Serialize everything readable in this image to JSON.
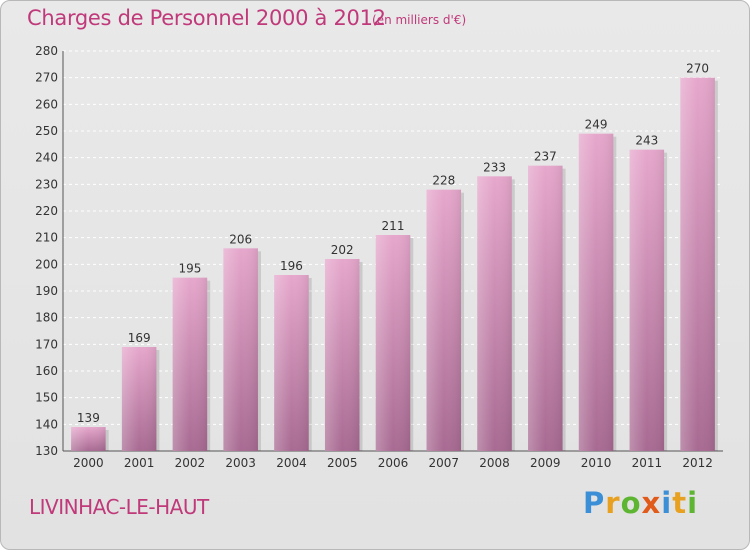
{
  "header": {
    "title": "Charges de Personnel 2000 à 2012",
    "subtitle": "(en milliers d'€)"
  },
  "footer": {
    "place_name": "LIVINHAC-LE-HAUT",
    "logo_letters": [
      "P",
      "r",
      "o",
      "x",
      "i",
      "t",
      "i"
    ],
    "logo_colors": [
      "#3a8fd6",
      "#e8a021",
      "#5db531",
      "#e05a1a",
      "#3a8fd6",
      "#e8a021",
      "#5db531"
    ]
  },
  "colors": {
    "bar_top": "#e6a7cc",
    "bar_bottom": "#a86a92",
    "title": "#c0397a",
    "grid": "#ffffff"
  },
  "chart_data": {
    "type": "bar",
    "title": "Charges de Personnel 2000 à 2012",
    "subtitle": "(en milliers d'€)",
    "categories": [
      "2000",
      "2001",
      "2002",
      "2003",
      "2004",
      "2005",
      "2006",
      "2007",
      "2008",
      "2009",
      "2010",
      "2011",
      "2012"
    ],
    "values": [
      139,
      169,
      195,
      206,
      196,
      202,
      211,
      228,
      233,
      237,
      249,
      243,
      270
    ],
    "ylim": [
      130,
      280
    ],
    "yticks": [
      130,
      140,
      150,
      160,
      170,
      180,
      190,
      200,
      210,
      220,
      230,
      240,
      250,
      260,
      270,
      280
    ],
    "grid": true,
    "data_labels": true
  }
}
